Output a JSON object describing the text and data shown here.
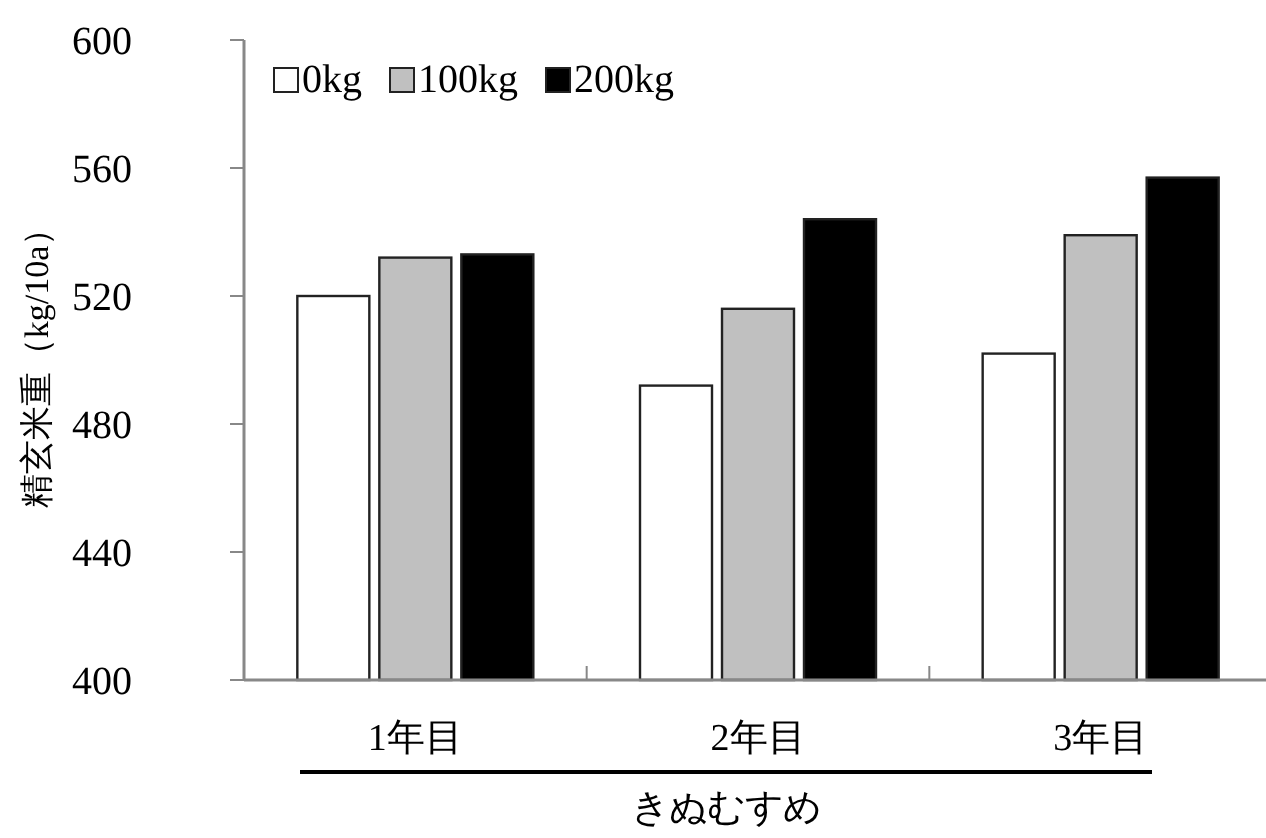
{
  "chart_data": {
    "type": "bar",
    "categories": [
      "1年目",
      "2年目",
      "3年目"
    ],
    "series": [
      {
        "name": "0kg",
        "color": "#ffffff",
        "values": [
          520,
          492,
          502
        ]
      },
      {
        "name": "100kg",
        "color": "#c0c0c0",
        "values": [
          532,
          516,
          539
        ]
      },
      {
        "name": "200kg",
        "color": "#000000",
        "values": [
          533,
          544,
          557
        ]
      }
    ],
    "ylabel": "精玄米重（kg/10a）",
    "xlabel": "きぬむすめ",
    "ylim": [
      400,
      600
    ],
    "yticks": [
      400,
      440,
      480,
      520,
      560,
      600
    ],
    "legend": "top left",
    "grid": false
  }
}
